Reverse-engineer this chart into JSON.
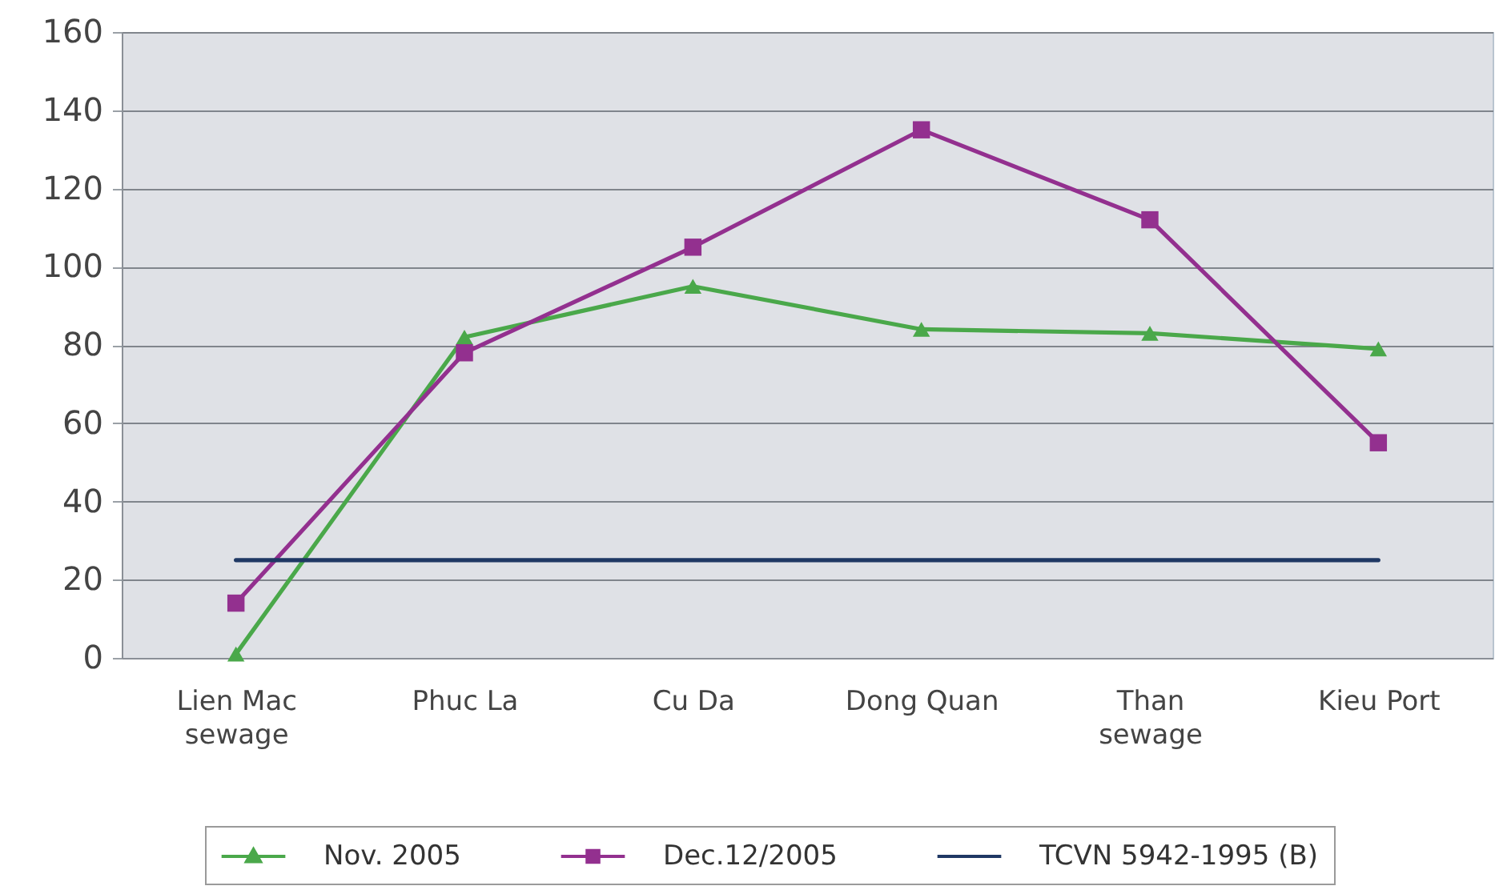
{
  "chart_data": {
    "type": "line",
    "categories": [
      "Lien Mac\nsewage",
      "Phuc La",
      "Cu Da",
      "Dong Quan",
      "Than\nsewage",
      "Kieu Port"
    ],
    "series": [
      {
        "name": "Nov. 2005",
        "color": "#4aa84a",
        "marker": "triangle",
        "values": [
          1,
          82,
          95,
          84,
          83,
          79
        ]
      },
      {
        "name": "Dec.12/2005",
        "color": "#93308f",
        "marker": "square",
        "values": [
          14,
          78,
          105,
          135,
          112,
          55
        ]
      },
      {
        "name": "TCVN 5942-1995 (B)",
        "color": "#1f3864",
        "marker": "none",
        "values": [
          25,
          25,
          25,
          25,
          25,
          25
        ]
      }
    ],
    "ylim": [
      0,
      160
    ],
    "yticks": [
      0,
      20,
      40,
      60,
      80,
      100,
      120,
      140,
      160
    ],
    "grid": "y",
    "legend": "bottom"
  }
}
